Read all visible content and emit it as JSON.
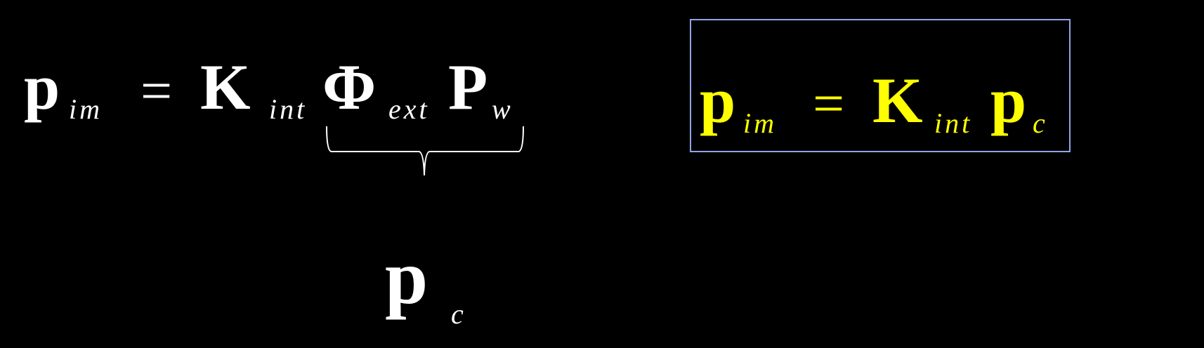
{
  "colors": {
    "background": "#000000",
    "main_text": "#ffffff",
    "highlight_text": "#ffff00",
    "box_border": "#8fa6e6"
  },
  "left_equation": {
    "p": "p",
    "p_sub": "im",
    "equals": "=",
    "K": "K",
    "K_sub": "int",
    "Phi": "Φ",
    "Phi_sub": "ext",
    "P": "P",
    "P_sub": "w"
  },
  "brace_label": {
    "p": "p",
    "p_sub": "c"
  },
  "boxed_equation": {
    "p": "p",
    "p_sub": "im",
    "equals": "=",
    "K": "K",
    "K_sub": "int",
    "pc": "p",
    "pc_sub": "c"
  }
}
